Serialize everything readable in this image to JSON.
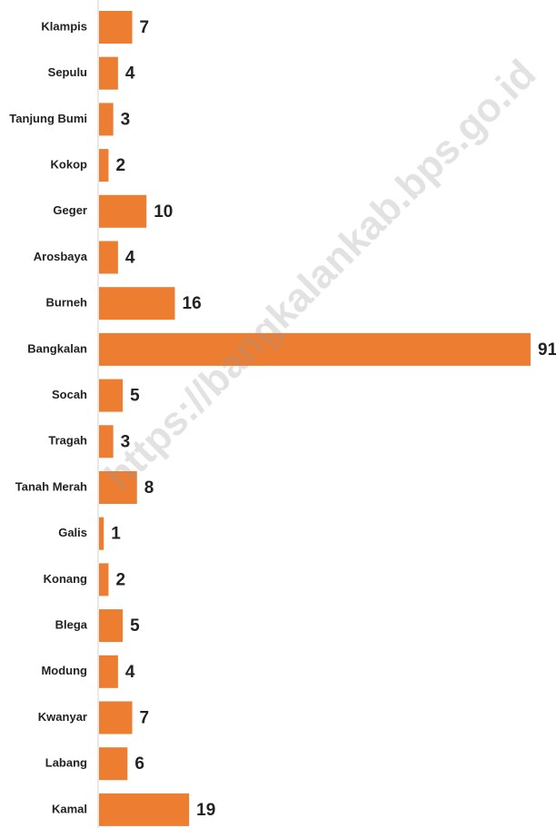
{
  "chart_data": {
    "type": "bar",
    "orientation": "horizontal",
    "categories": [
      "Klampis",
      "Sepulu",
      "Tanjung Bumi",
      "Kokop",
      "Geger",
      "Arosbaya",
      "Burneh",
      "Bangkalan",
      "Socah",
      "Tragah",
      "Tanah Merah",
      "Galis",
      "Konang",
      "Blega",
      "Modung",
      "Kwanyar",
      "Labang",
      "Kamal"
    ],
    "values": [
      7,
      4,
      3,
      2,
      10,
      4,
      16,
      91,
      5,
      3,
      8,
      1,
      2,
      5,
      4,
      7,
      6,
      19
    ],
    "color": "#ed7d31",
    "watermark": "https://bangkalankab.bps.go.id"
  }
}
